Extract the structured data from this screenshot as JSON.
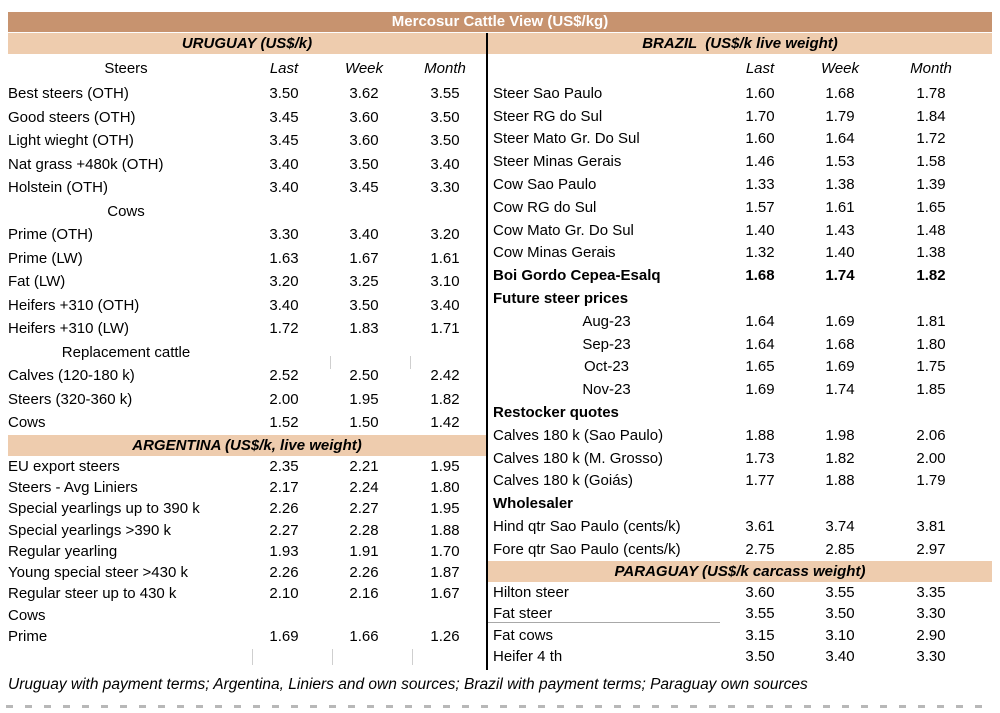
{
  "title": "Mercosur Cattle View (US$/kg)",
  "footer": "Uruguay with payment terms; Argentina, Liniers and own sources; Brazil with payment terms; Paraguay own sources",
  "columns": [
    "Last",
    "Week",
    "Month"
  ],
  "colors": {
    "title_bg": "#c7936f",
    "title_text": "#ffffff",
    "section_bg": "#eeccae",
    "divider": "#000000"
  },
  "left": {
    "col_header_label": "Steers",
    "sections": [
      {
        "header": "URUGUAY (US$/k)",
        "rows": [
          {
            "label": "Best steers (OTH)",
            "values": [
              "3.50",
              "3.62",
              "3.55"
            ]
          },
          {
            "label": "Good steers (OTH)",
            "values": [
              "3.45",
              "3.60",
              "3.50"
            ]
          },
          {
            "label": "Light wieght (OTH)",
            "values": [
              "3.45",
              "3.60",
              "3.50"
            ]
          },
          {
            "label": "Nat grass +480k (OTH)",
            "values": [
              "3.40",
              "3.50",
              "3.40"
            ]
          },
          {
            "label": "Holstein (OTH)",
            "values": [
              "3.40",
              "3.45",
              "3.30"
            ]
          },
          {
            "label": "Cows",
            "align": "center"
          },
          {
            "label": "Prime (OTH)",
            "values": [
              "3.30",
              "3.40",
              "3.20"
            ]
          },
          {
            "label": "Prime (LW)",
            "values": [
              "1.63",
              "1.67",
              "1.61"
            ]
          },
          {
            "label": "Fat (LW)",
            "values": [
              "3.20",
              "3.25",
              "3.10"
            ]
          },
          {
            "label": "Heifers +310 (OTH)",
            "values": [
              "3.40",
              "3.50",
              "3.40"
            ]
          },
          {
            "label": "Heifers +310 (LW)",
            "values": [
              "1.72",
              "1.83",
              "1.71"
            ]
          },
          {
            "label": "Replacement cattle",
            "align": "center"
          },
          {
            "label": "Calves (120-180 k)",
            "values": [
              "2.52",
              "2.50",
              "2.42"
            ]
          },
          {
            "label": "Steers (320-360 k)",
            "values": [
              "2.00",
              "1.95",
              "1.82"
            ]
          },
          {
            "label": "Cows",
            "values": [
              "1.52",
              "1.50",
              "1.42"
            ]
          }
        ]
      },
      {
        "header": "ARGENTINA (US$/k, live weight)",
        "rows": [
          {
            "label": "EU export steers",
            "values": [
              "2.35",
              "2.21",
              "1.95"
            ]
          },
          {
            "label": "Steers - Avg Liniers",
            "values": [
              "2.17",
              "2.24",
              "1.80"
            ]
          },
          {
            "label": "Special yearlings up to 390 k",
            "values": [
              "2.26",
              "2.27",
              "1.95"
            ]
          },
          {
            "label": "Special yearlings >390 k",
            "values": [
              "2.27",
              "2.28",
              "1.88"
            ]
          },
          {
            "label": "Regular yearling",
            "values": [
              "1.93",
              "1.91",
              "1.70"
            ]
          },
          {
            "label": "Young special steer >430 k",
            "values": [
              "2.26",
              "2.26",
              "1.87"
            ]
          },
          {
            "label": "Regular steer up to 430 k",
            "values": [
              "2.10",
              "2.16",
              "1.67"
            ]
          },
          {
            "label": "Cows"
          },
          {
            "label": "Prime",
            "values": [
              "1.69",
              "1.66",
              "1.26"
            ]
          }
        ]
      }
    ]
  },
  "right": {
    "col_header_label": "",
    "sections": [
      {
        "header": "BRAZIL  (US$/k live weight)",
        "rows": [
          {
            "label": "Steer Sao Paulo",
            "values": [
              "1.60",
              "1.68",
              "1.78"
            ]
          },
          {
            "label": "Steer RG do Sul",
            "values": [
              "1.70",
              "1.79",
              "1.84"
            ]
          },
          {
            "label": "Steer Mato Gr. Do Sul",
            "values": [
              "1.60",
              "1.64",
              "1.72"
            ]
          },
          {
            "label": "Steer Minas Gerais",
            "values": [
              "1.46",
              "1.53",
              "1.58"
            ]
          },
          {
            "label": "Cow Sao Paulo",
            "values": [
              "1.33",
              "1.38",
              "1.39"
            ]
          },
          {
            "label": "Cow RG do Sul",
            "values": [
              "1.57",
              "1.61",
              "1.65"
            ]
          },
          {
            "label": "Cow Mato Gr. Do Sul",
            "values": [
              "1.40",
              "1.43",
              "1.48"
            ]
          },
          {
            "label": "Cow Minas Gerais",
            "values": [
              "1.32",
              "1.40",
              "1.38"
            ]
          },
          {
            "label": "Boi Gordo Cepea-Esalq",
            "values": [
              "1.68",
              "1.74",
              "1.82"
            ],
            "bold": true
          },
          {
            "label": "Future steer prices",
            "bold": true
          },
          {
            "label": "Aug-23",
            "align": "center",
            "values": [
              "1.64",
              "1.69",
              "1.81"
            ]
          },
          {
            "label": "Sep-23",
            "align": "center",
            "values": [
              "1.64",
              "1.68",
              "1.80"
            ]
          },
          {
            "label": "Oct-23",
            "align": "center",
            "values": [
              "1.65",
              "1.69",
              "1.75"
            ]
          },
          {
            "label": "Nov-23",
            "align": "center",
            "values": [
              "1.69",
              "1.74",
              "1.85"
            ]
          },
          {
            "label": "Restocker quotes",
            "bold": true
          },
          {
            "label": "Calves 180 k (Sao Paulo)",
            "values": [
              "1.88",
              "1.98",
              "2.06"
            ]
          },
          {
            "label": "Calves 180 k (M. Grosso)",
            "values": [
              "1.73",
              "1.82",
              "2.00"
            ]
          },
          {
            "label": "Calves 180 k (Goiás)",
            "values": [
              "1.77",
              "1.88",
              "1.79"
            ]
          },
          {
            "label": "Wholesaler",
            "bold": true
          },
          {
            "label": "Hind qtr Sao Paulo (cents/k)",
            "values": [
              "3.61",
              "3.74",
              "3.81"
            ]
          },
          {
            "label": "Fore qtr Sao Paulo (cents/k)",
            "values": [
              "2.75",
              "2.85",
              "2.97"
            ]
          }
        ]
      },
      {
        "header": "PARAGUAY (US$/k carcass weight)",
        "rows": [
          {
            "label": "Hilton steer",
            "values": [
              "3.60",
              "3.55",
              "3.35"
            ]
          },
          {
            "label": "Fat steer",
            "values": [
              "3.55",
              "3.50",
              "3.30"
            ],
            "ul": true
          },
          {
            "label": "Fat cows",
            "values": [
              "3.15",
              "3.10",
              "2.90"
            ]
          },
          {
            "label": "Heifer 4 th",
            "values": [
              "3.50",
              "3.40",
              "3.30"
            ]
          }
        ]
      }
    ]
  }
}
